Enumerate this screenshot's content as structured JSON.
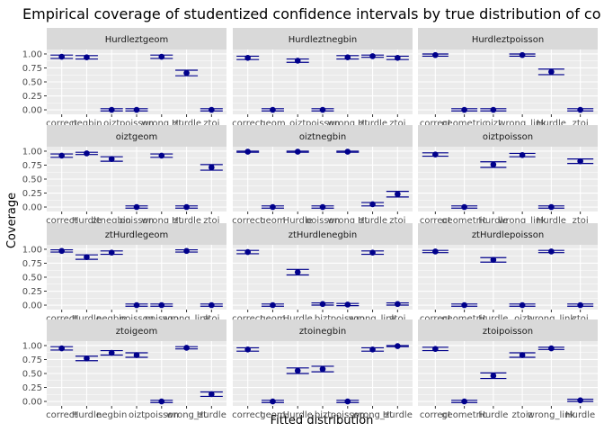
{
  "chart_data": {
    "type": "scatter",
    "title": "Empirical coverage of studentized confidence intervals by true distribution of co",
    "xlabel": "Fitted distribution",
    "ylabel": "Coverage",
    "ylim": [
      -0.08,
      1.08
    ],
    "y_ticks": [
      "0.00",
      "0.25",
      "0.50",
      "0.75",
      "1.00"
    ],
    "y_tick_values": [
      0,
      0.25,
      0.5,
      0.75,
      1
    ],
    "grid": true,
    "colors": {
      "point": "#00008b",
      "errorbar": "#00008b",
      "panel_bg": "#ebebeb",
      "strip_bg": "#d9d9d9",
      "grid": "#ffffff"
    },
    "panels": [
      {
        "strip": "Hurdleztgeom",
        "categories": [
          "correct",
          "ztnegbin",
          "oiztnegbin",
          "oiztpoisson",
          "wrong_link",
          "ztHurdle",
          "ztoi"
        ],
        "tick_labels": [
          "correct",
          "negbin",
          "oizt",
          "poisson",
          "wrong_zt",
          "Hurdle",
          "ztoi"
        ],
        "values": [
          0.95,
          0.94,
          0.0,
          0.0,
          0.95,
          0.66,
          0.0
        ],
        "err": [
          0.03,
          0.03,
          0.02,
          0.02,
          0.03,
          0.05,
          0.02
        ]
      },
      {
        "strip": "Hurdleztnegbin",
        "categories": [
          "correct",
          "geom",
          "oizt",
          "poisson",
          "wrong_zt",
          "Hurdle",
          "ztoi"
        ],
        "tick_labels": [
          "correct",
          "geom",
          "oizt",
          "poisson",
          "wrong_zt",
          "Hurdle",
          "ztoi"
        ],
        "values": [
          0.93,
          0.0,
          0.88,
          0.0,
          0.94,
          0.96,
          0.93
        ],
        "err": [
          0.03,
          0.02,
          0.03,
          0.02,
          0.03,
          0.02,
          0.03
        ]
      },
      {
        "strip": "Hurdleztpoisson",
        "categories": [
          "correct",
          "geometric",
          "oizt",
          "wrong_link",
          "Hurdle",
          "ztoi"
        ],
        "tick_labels": [
          "correct",
          "geometric",
          "oizt",
          "wrong_link",
          "Hurdle",
          "ztoi"
        ],
        "values": [
          0.98,
          0.0,
          0.0,
          0.98,
          0.68,
          0.0
        ],
        "err": [
          0.02,
          0.02,
          0.02,
          0.02,
          0.05,
          0.02
        ]
      },
      {
        "strip": "oiztgeom",
        "categories": [
          "correct",
          "Hurdle",
          "ztnegbin",
          "poisson",
          "wrong_zt",
          "Hurdle",
          "ztoi"
        ],
        "tick_labels": [
          "correct",
          "Hurdle",
          "ztnegbin",
          "poisson",
          "wrong_zt",
          "Hurdle",
          "ztoi"
        ],
        "values": [
          0.92,
          0.96,
          0.86,
          0.0,
          0.92,
          0.0,
          0.71
        ],
        "err": [
          0.03,
          0.02,
          0.04,
          0.02,
          0.03,
          0.02,
          0.05
        ]
      },
      {
        "strip": "oiztnegbin",
        "categories": [
          "correct",
          "geom",
          "Hurdle",
          "poisson",
          "wrong_zt",
          "Hurdle",
          "ztoi"
        ],
        "tick_labels": [
          "correct",
          "geom",
          "Hurdle",
          "poisson",
          "wrong_zt",
          "Hurdle",
          "ztoi"
        ],
        "values": [
          0.99,
          0.0,
          0.99,
          0.0,
          0.99,
          0.05,
          0.23
        ],
        "err": [
          0.01,
          0.02,
          0.01,
          0.02,
          0.01,
          0.03,
          0.05
        ]
      },
      {
        "strip": "oiztpoisson",
        "categories": [
          "correct",
          "geometric",
          "Hurdle",
          "wrong_link",
          "Hurdle",
          "ztoi"
        ],
        "tick_labels": [
          "correct",
          "geometric",
          "Hurdle",
          "wrong_link",
          "Hurdle",
          "ztoi"
        ],
        "values": [
          0.94,
          0.0,
          0.76,
          0.93,
          0.0,
          0.82
        ],
        "err": [
          0.03,
          0.02,
          0.05,
          0.03,
          0.02,
          0.04
        ]
      },
      {
        "strip": "ztHurdlegeom",
        "categories": [
          "correct",
          "Hurdle",
          "negbin",
          "poisson",
          "poisson",
          "wrong_link",
          "ztoi"
        ],
        "tick_labels": [
          "correct",
          "Hurdle",
          "negbin",
          "poisson",
          "poisson",
          "wrong_link",
          "ztoi"
        ],
        "values": [
          0.97,
          0.86,
          0.94,
          0.0,
          0.0,
          0.97,
          0.0
        ],
        "err": [
          0.02,
          0.04,
          0.03,
          0.02,
          0.02,
          0.02,
          0.02
        ]
      },
      {
        "strip": "ztHurdlenegbin",
        "categories": [
          "correct",
          "geom",
          "Hurdle",
          "bizt",
          "poisson",
          "wrong_link",
          "ztoi"
        ],
        "tick_labels": [
          "correct",
          "geom",
          "Hurdle",
          "bizt",
          "poisson",
          "wrong_link",
          "ztoi"
        ],
        "values": [
          0.95,
          0.0,
          0.59,
          0.02,
          0.01,
          0.94,
          0.02
        ],
        "err": [
          0.03,
          0.02,
          0.05,
          0.02,
          0.02,
          0.03,
          0.02
        ]
      },
      {
        "strip": "ztHurdlepoisson",
        "categories": [
          "correct",
          "geometric",
          "Hurdle",
          "oizt",
          "wrong_link",
          "ztoi"
        ],
        "tick_labels": [
          "correct",
          "geometric",
          "Hurdle",
          "oizt",
          "wrong_link",
          "ztoi"
        ],
        "values": [
          0.96,
          0.0,
          0.81,
          0.0,
          0.96,
          0.0
        ],
        "err": [
          0.02,
          0.02,
          0.04,
          0.02,
          0.02,
          0.02
        ]
      },
      {
        "strip": "ztoigeom",
        "categories": [
          "correct",
          "Hurdle",
          "negbin",
          "oizt",
          "poisson",
          "wrong_zt",
          "Hurdle"
        ],
        "tick_labels": [
          "correct",
          "Hurdle",
          "negbin",
          "oizt",
          "poisson",
          "wrong_zt",
          "Hurdle"
        ],
        "values": [
          0.95,
          0.77,
          0.87,
          0.83,
          0.0,
          0.96,
          0.13
        ],
        "err": [
          0.03,
          0.04,
          0.04,
          0.04,
          0.02,
          0.02,
          0.04
        ]
      },
      {
        "strip": "ztoinegbin",
        "categories": [
          "correct",
          "geom",
          "Hurdle",
          "bizt",
          "poisson",
          "wrong_zt",
          "Hurdle"
        ],
        "tick_labels": [
          "correct",
          "geom",
          "Hurdle",
          "bizt",
          "poisson",
          "wrong_zt",
          "Hurdle"
        ],
        "values": [
          0.93,
          0.0,
          0.55,
          0.58,
          0.0,
          0.93,
          0.99
        ],
        "err": [
          0.03,
          0.02,
          0.05,
          0.05,
          0.02,
          0.03,
          0.01
        ]
      },
      {
        "strip": "ztoipoisson",
        "categories": [
          "correct",
          "geometric",
          "Hurdle",
          "zoiz",
          "wrong_link",
          "Hurdle"
        ],
        "tick_labels": [
          "correct",
          "geometric",
          "Hurdle",
          "ztoiz",
          "wrong_link",
          "Hurdle"
        ],
        "values": [
          0.94,
          0.0,
          0.46,
          0.83,
          0.95,
          0.02
        ],
        "err": [
          0.03,
          0.02,
          0.05,
          0.04,
          0.02,
          0.02
        ]
      }
    ]
  }
}
